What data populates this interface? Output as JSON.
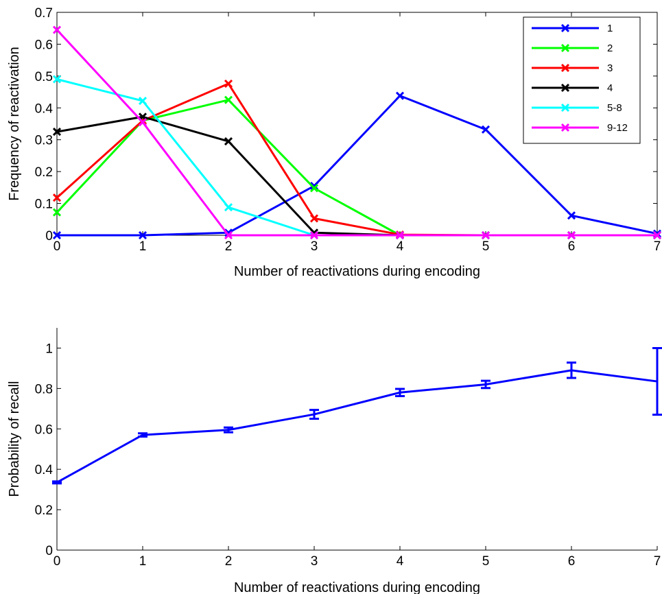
{
  "colors": {
    "axis": "#000000",
    "background": "#ffffff"
  },
  "chart_data": [
    {
      "type": "line",
      "title": "",
      "xlabel": "Number of reactivations during encoding",
      "ylabel": "Frequency of reactivation",
      "x": [
        0,
        1,
        2,
        3,
        4,
        5,
        6,
        7
      ],
      "xlim": [
        0,
        7
      ],
      "ylim": [
        0,
        0.7
      ],
      "xticks": [
        "0",
        "1",
        "2",
        "3",
        "4",
        "5",
        "6",
        "7"
      ],
      "yticks": [
        "0",
        "0.1",
        "0.2",
        "0.3",
        "0.4",
        "0.5",
        "0.6",
        "0.7"
      ],
      "grid": false,
      "legend_position": "top-right",
      "marker": "x",
      "series": [
        {
          "name": "1",
          "color": "#0000ff",
          "values": [
            0,
            0,
            0.008,
            0.155,
            0.438,
            0.332,
            0.062,
            0.005
          ]
        },
        {
          "name": "2",
          "color": "#00ff00",
          "values": [
            0.072,
            0.36,
            0.425,
            0.148,
            0,
            0,
            0,
            0
          ]
        },
        {
          "name": "3",
          "color": "#ff0000",
          "values": [
            0.118,
            0.36,
            0.476,
            0.053,
            0.002,
            0,
            0,
            0
          ]
        },
        {
          "name": "4",
          "color": "#000000",
          "values": [
            0.325,
            0.372,
            0.295,
            0.008,
            0,
            0,
            0,
            0
          ]
        },
        {
          "name": "5-8",
          "color": "#00ffff",
          "values": [
            0.49,
            0.422,
            0.088,
            0,
            0,
            0,
            0,
            0
          ]
        },
        {
          "name": "9-12",
          "color": "#ff00ff",
          "values": [
            0.645,
            0.355,
            0,
            0,
            0,
            0,
            0,
            0
          ]
        }
      ]
    },
    {
      "type": "line",
      "title": "",
      "xlabel": "Number of reactivations during encoding",
      "ylabel": "Probability of recall",
      "x": [
        0,
        1,
        2,
        3,
        4,
        5,
        6,
        7
      ],
      "xlim": [
        0,
        7
      ],
      "ylim": [
        0,
        1.1
      ],
      "xticks": [
        "0",
        "1",
        "2",
        "3",
        "4",
        "5",
        "6",
        "7"
      ],
      "yticks": [
        "0",
        "0.2",
        "0.4",
        "0.6",
        "0.8",
        "1"
      ],
      "grid": false,
      "error_bars": true,
      "series": [
        {
          "color": "#0000ff",
          "values": [
            0.335,
            0.57,
            0.595,
            0.672,
            0.78,
            0.82,
            0.89,
            0.835
          ],
          "error": [
            0.005,
            0.008,
            0.012,
            0.022,
            0.018,
            0.018,
            0.038,
            0.165
          ]
        }
      ]
    }
  ]
}
